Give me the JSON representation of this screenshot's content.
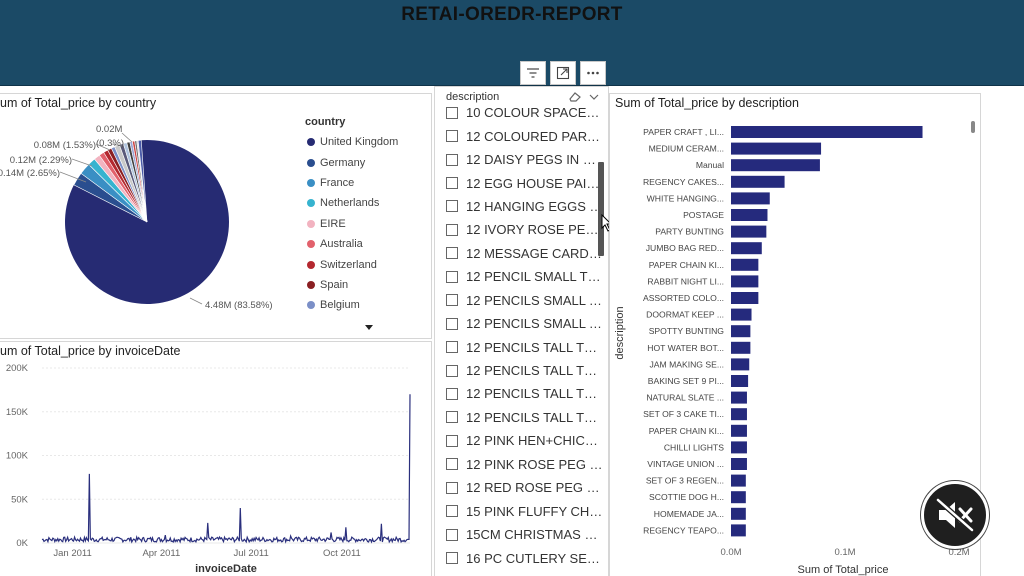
{
  "report": {
    "title": "RETAI-OREDR-REPORT"
  },
  "toolbar": {
    "icons": [
      "filter-icon",
      "focus-mode-icon",
      "more-options-icon"
    ]
  },
  "pie_panel": {
    "title": "um of Total_price by country"
  },
  "line_panel": {
    "title": "um of Total_price by invoiceDate"
  },
  "bar_panel": {
    "title": "Sum of Total_price by description"
  },
  "slicer": {
    "header": "description",
    "items": [
      "10 COLOUR SPACEBO...",
      "12 COLOURED PARTY ...",
      "12 DAISY PEGS IN WO...",
      "12 EGG HOUSE PAINT...",
      "12 HANGING EGGS H...",
      "12 IVORY ROSE PEG P...",
      "12 MESSAGE CARDS ...",
      "12 PENCIL SMALL TUB...",
      "12 PENCILS SMALL TU...",
      "12 PENCILS SMALL TU...",
      "12 PENCILS TALL TUBE...",
      "12 PENCILS TALL TUBE...",
      "12 PENCILS TALL TUBE...",
      "12 PENCILS TALL TUBE...",
      "12 PINK HEN+CHICKS...",
      "12 PINK ROSE PEG PL...",
      "12 RED ROSE PEG PLA...",
      "15 PINK FLUFFY CHICK...",
      "15CM CHRISTMAS GL...",
      "16 PC CUTLERY SET PA..."
    ]
  },
  "colors": {
    "header": "#1b4a66",
    "bar": "#252a7d",
    "pie_main": "#262b73"
  },
  "chart_data": [
    {
      "type": "pie",
      "title": "um of Total_price by country",
      "legend_title": "country",
      "legend_position": "right",
      "legend": [
        {
          "name": "United Kingdom",
          "color": "#262b73"
        },
        {
          "name": "Germany",
          "color": "#2a4e8f"
        },
        {
          "name": "France",
          "color": "#3a8fc4"
        },
        {
          "name": "Netherlands",
          "color": "#36b3cf"
        },
        {
          "name": "EIRE",
          "color": "#f2b3c0"
        },
        {
          "name": "Australia",
          "color": "#e2616c"
        },
        {
          "name": "Switzerland",
          "color": "#b4282f"
        },
        {
          "name": "Spain",
          "color": "#8a1f22"
        },
        {
          "name": "Belgium",
          "color": "#7b8fc7"
        }
      ],
      "slices": [
        {
          "name": "United Kingdom",
          "value": 83.58,
          "color": "#262b73"
        },
        {
          "name": "Germany",
          "value": 2.65,
          "color": "#2a4e8f"
        },
        {
          "name": "France",
          "value": 2.29,
          "color": "#3a8fc4"
        },
        {
          "name": "Netherlands",
          "value": 1.53,
          "color": "#36b3cf"
        },
        {
          "name": "EIRE",
          "value": 1.2,
          "color": "#f2b3c0"
        },
        {
          "name": "Australia",
          "value": 1.0,
          "color": "#e2616c"
        },
        {
          "name": "Switzerland",
          "value": 0.9,
          "color": "#b4282f"
        },
        {
          "name": "Spain",
          "value": 0.8,
          "color": "#8a1f22"
        },
        {
          "name": "Belgium",
          "value": 0.7,
          "color": "#7b8fc7"
        },
        {
          "name": "",
          "value": 1.0,
          "color": "#c9c9c9"
        },
        {
          "name": "",
          "value": 0.8,
          "color": "#5a5a7a"
        },
        {
          "name": "",
          "value": 0.7,
          "color": "#b0c4de"
        },
        {
          "name": "",
          "value": 0.6,
          "color": "#404040"
        },
        {
          "name": "",
          "value": 0.5,
          "color": "#9aa5d6"
        },
        {
          "name": "",
          "value": 0.45,
          "color": "#cc4444"
        },
        {
          "name": "",
          "value": 0.4,
          "color": "#6f6f6f"
        },
        {
          "name": "",
          "value": 0.3,
          "color": "#d9d9e8"
        },
        {
          "name": "",
          "value": 0.6,
          "color": "#4a5ba8"
        }
      ],
      "data_labels": [
        "4.48M (83.58%)",
        "0.14M (2.65%)",
        "0.12M (2.29%)",
        "0.08M (1.53%)",
        "(0.3%)",
        "0.02M"
      ]
    },
    {
      "type": "line",
      "title": "um of Total_price by invoiceDate",
      "xlabel": "invoiceDate",
      "x_ticks": [
        "Jan 2011",
        "Apr 2011",
        "Jul 2011",
        "Oct 2011"
      ],
      "y_ticks": [
        "0K",
        "50K",
        "100K",
        "150K",
        "200K"
      ],
      "ylim": [
        0,
        200000
      ],
      "x_range": [
        "2010-12-01",
        "2011-12-09"
      ],
      "baseline": 4000,
      "spikes": [
        {
          "date": "2011-01-18",
          "value": 79000
        },
        {
          "date": "2011-05-18",
          "value": 23000
        },
        {
          "date": "2011-06-20",
          "value": 40000
        },
        {
          "date": "2011-04-05",
          "value": 9000
        },
        {
          "date": "2011-08-10",
          "value": 8000
        },
        {
          "date": "2011-09-20",
          "value": 12000
        },
        {
          "date": "2011-10-05",
          "value": 18000
        },
        {
          "date": "2011-11-10",
          "value": 22000
        },
        {
          "date": "2011-12-09",
          "value": 170000
        }
      ]
    },
    {
      "type": "bar",
      "orientation": "horizontal",
      "title": "Sum of Total_price by description",
      "xlabel": "Sum of Total_price",
      "ylabel": "description",
      "x_ticks": [
        "0.0M",
        "0.1M",
        "0.2M"
      ],
      "xlim": [
        0,
        0.2
      ],
      "categories": [
        "PAPER CRAFT , LI...",
        "MEDIUM CERAM...",
        "Manual",
        "REGENCY CAKES...",
        "WHITE HANGING...",
        "POSTAGE",
        "PARTY BUNTING",
        "JUMBO BAG RED...",
        "PAPER CHAIN KI...",
        "RABBIT NIGHT LI...",
        "ASSORTED COLO...",
        "DOORMAT KEEP ...",
        "SPOTTY BUNTING",
        "HOT WATER BOT...",
        "JAM MAKING SE...",
        "BAKING SET 9 PI...",
        "NATURAL SLATE ...",
        "SET OF 3 CAKE TI...",
        "PAPER CHAIN KI...",
        "CHILLI LIGHTS",
        "VINTAGE UNION ...",
        "SET OF 3 REGEN...",
        "SCOTTIE DOG H...",
        "HOMEMADE JA...",
        "REGENCY TEAPO..."
      ],
      "values": [
        0.168,
        0.079,
        0.078,
        0.047,
        0.034,
        0.032,
        0.031,
        0.027,
        0.024,
        0.024,
        0.024,
        0.018,
        0.017,
        0.017,
        0.016,
        0.015,
        0.014,
        0.014,
        0.014,
        0.014,
        0.014,
        0.013,
        0.013,
        0.013,
        0.013
      ]
    }
  ]
}
